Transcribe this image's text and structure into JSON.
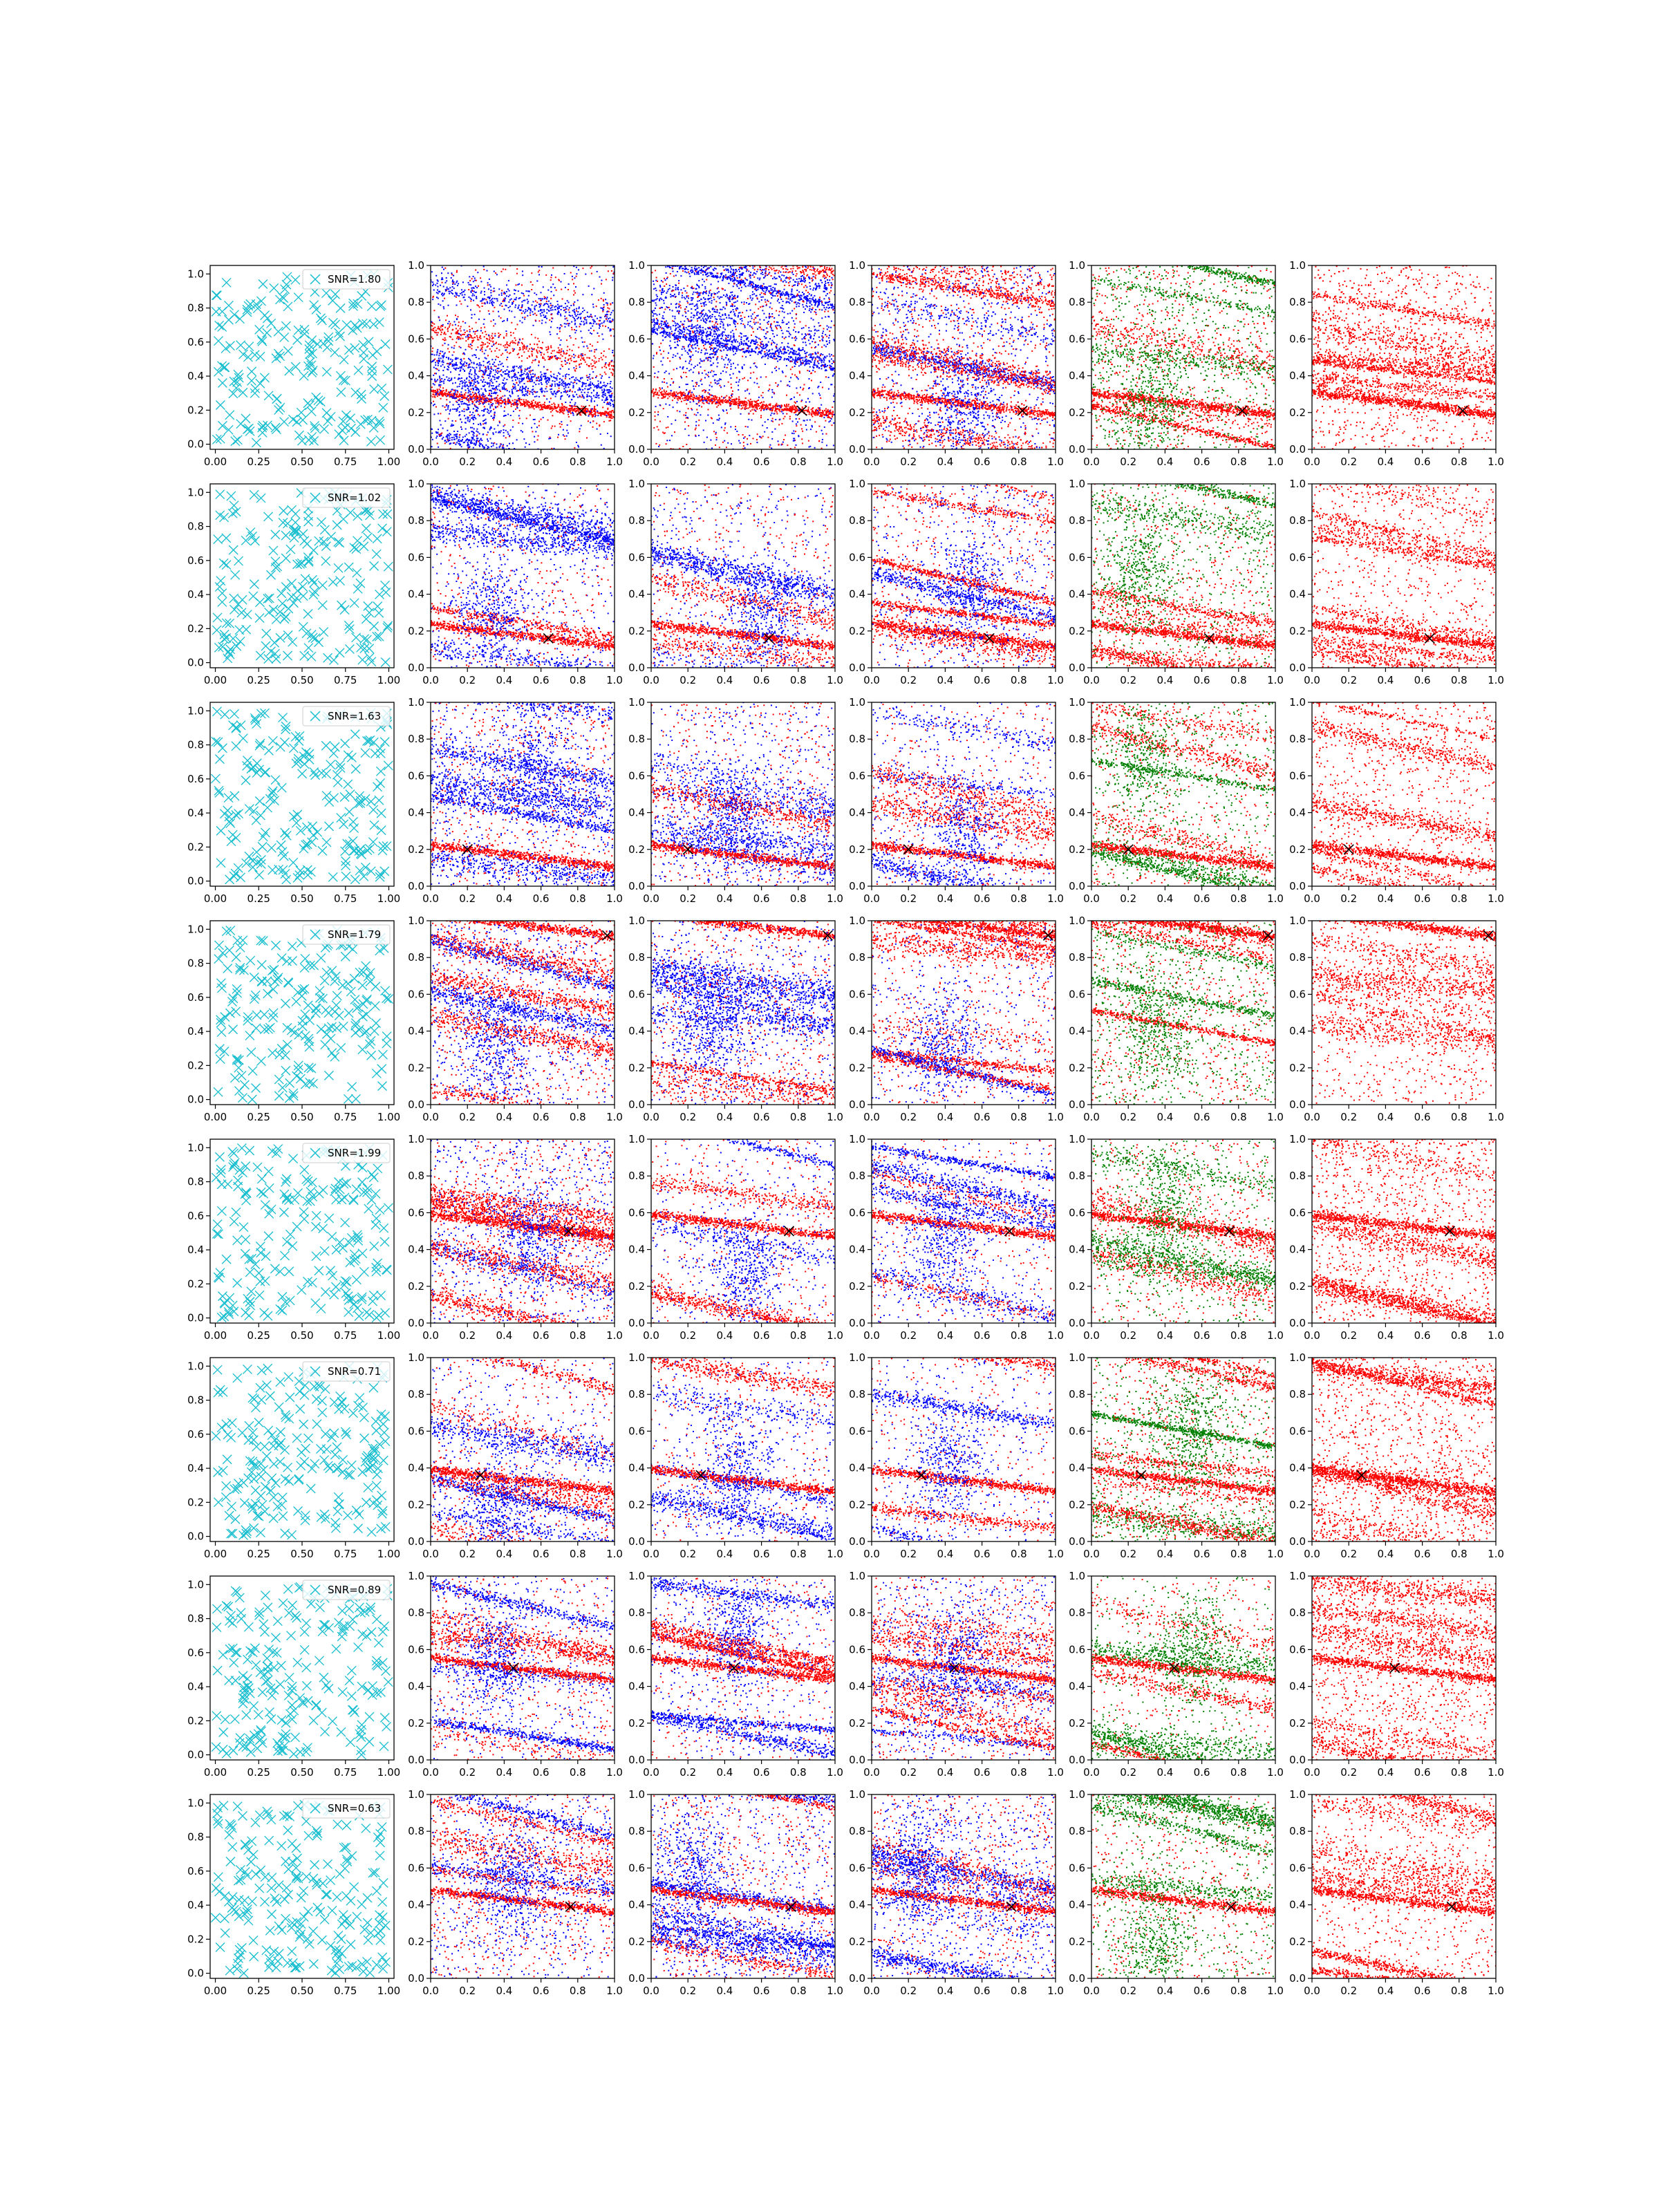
{
  "colors": {
    "cyan": "#17becf",
    "red": "#ff0000",
    "blue": "#0000ff",
    "green": "#008000",
    "marker": "#000000",
    "legend_bg": "#ffffff"
  },
  "chart_data": {
    "type": "scatter",
    "grid": false,
    "columns": [
      {
        "kind": "random-crosses",
        "color": "cyan",
        "legend": true
      },
      {
        "kind": "streak-scatter",
        "colors": [
          "red",
          "blue"
        ]
      },
      {
        "kind": "streak-scatter",
        "colors": [
          "red",
          "blue"
        ]
      },
      {
        "kind": "streak-scatter",
        "colors": [
          "red",
          "blue"
        ]
      },
      {
        "kind": "streak-scatter",
        "colors": [
          "red",
          "green"
        ]
      },
      {
        "kind": "streak-scatter",
        "colors": [
          "red"
        ]
      }
    ],
    "first_column": {
      "xlim": [
        -0.03,
        1.03
      ],
      "ylim": [
        -0.03,
        1.05
      ],
      "xticks": [
        "0.00",
        "0.25",
        "0.50",
        "0.75",
        "1.00"
      ],
      "yticks": [
        "0.0",
        "0.2",
        "0.4",
        "0.6",
        "0.8",
        "1.0"
      ]
    },
    "other_columns": {
      "xlim": [
        0,
        1
      ],
      "ylim": [
        0,
        1
      ],
      "xticks": [
        "0.0",
        "0.2",
        "0.4",
        "0.6",
        "0.8",
        "1.0"
      ],
      "yticks": [
        "0.0",
        "0.2",
        "0.4",
        "0.6",
        "0.8",
        "1.0"
      ]
    },
    "rows": [
      {
        "legend": "SNR=1.80",
        "target": [
          0.82,
          0.21
        ]
      },
      {
        "legend": "SNR=1.02",
        "target": [
          0.64,
          0.16
        ]
      },
      {
        "legend": "SNR=1.63",
        "target": [
          0.2,
          0.2
        ]
      },
      {
        "legend": "SNR=1.79",
        "target": [
          0.96,
          0.92
        ]
      },
      {
        "legend": "SNR=1.99",
        "target": [
          0.75,
          0.5
        ]
      },
      {
        "legend": "SNR=0.71",
        "target": [
          0.27,
          0.36
        ]
      },
      {
        "legend": "SNR=0.89",
        "target": [
          0.45,
          0.5
        ]
      },
      {
        "legend": "SNR=0.63",
        "target": [
          0.76,
          0.39
        ]
      }
    ]
  }
}
